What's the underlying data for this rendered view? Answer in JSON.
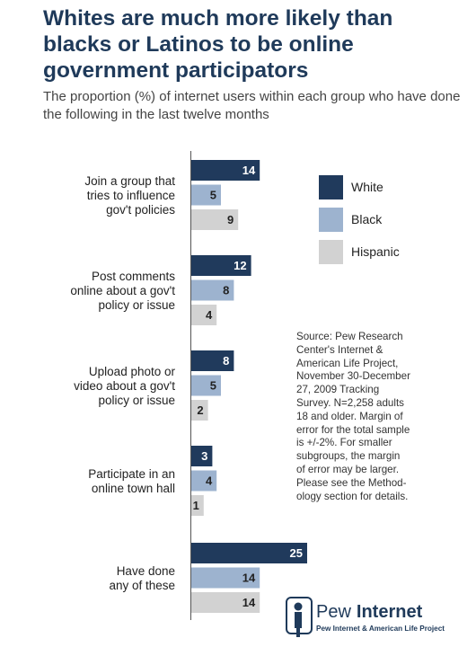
{
  "title": "Whites are much more likely than blacks or Latinos to be online government participators",
  "subtitle": "The proportion (%) of internet users within each group who have done the following in the last twelve months",
  "colors": {
    "White": "#203a5c",
    "Black": "#9db3cf",
    "Hispanic": "#d2d2d2",
    "title": "#1f3a5a"
  },
  "chart_data": {
    "type": "bar",
    "orientation": "horizontal",
    "categories": [
      [
        "Join a group that",
        "tries to influence",
        "gov't policies"
      ],
      [
        "Post comments",
        "online about a gov't",
        "policy or issue"
      ],
      [
        "Upload photo or",
        "video about a gov't",
        "policy or issue"
      ],
      [
        "Participate in an",
        "online town hall"
      ],
      [
        "Have done",
        "any of these"
      ]
    ],
    "series": [
      {
        "name": "White",
        "values": [
          14,
          12,
          8,
          3,
          25
        ]
      },
      {
        "name": "Black",
        "values": [
          5,
          8,
          5,
          4,
          14
        ]
      },
      {
        "name": "Hispanic",
        "values": [
          9,
          4,
          2,
          1,
          14
        ]
      }
    ],
    "legend_position": "right",
    "grid": false
  },
  "source_lines": [
    "Source: Pew Research",
    "Center's Internet &",
    "American Life Project,",
    "November 30-December",
    "27, 2009 Tracking",
    "Survey. N=2,258 adults",
    "18 and older. Margin of",
    "error for the total sample",
    "is +/-2%. For smaller",
    "subgroups, the margin",
    "of error may be larger.",
    "Please see the Method-",
    "ology section for details."
  ],
  "logo": {
    "word1": "Pew",
    "word2": "Internet",
    "tagline": "Pew Internet & American Life Project"
  }
}
